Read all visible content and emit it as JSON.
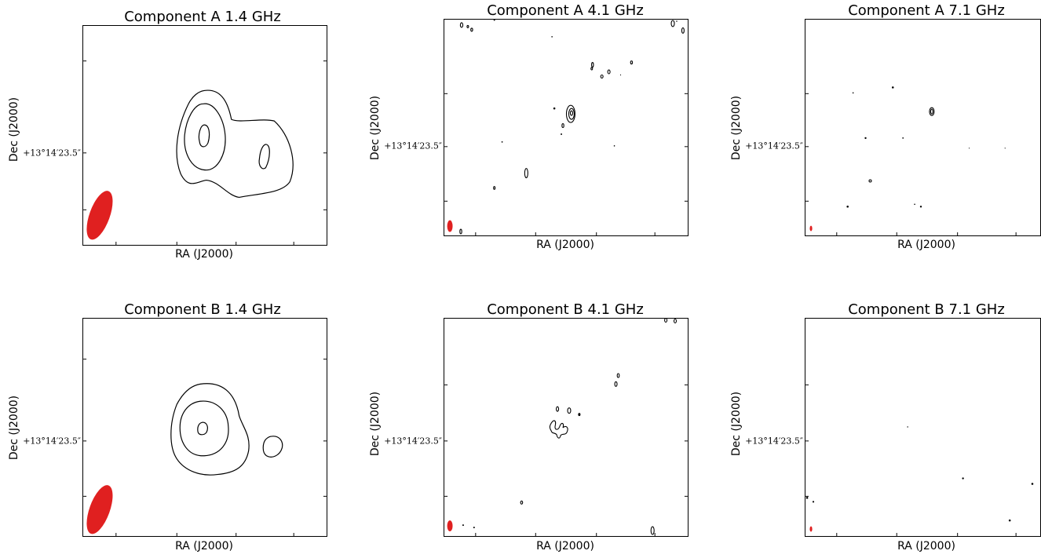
{
  "panels": [
    {
      "title": "Component A 1.4 GHz",
      "xlabel": "RA (J2000)",
      "ylabel": "Dec (J2000)",
      "ytick": "+13°14′23.5″"
    },
    {
      "title": "Component A 4.1 GHz",
      "xlabel": "RA (J2000)",
      "ylabel": "Dec (J2000)",
      "ytick": "+13°14′23.5″"
    },
    {
      "title": "Component A 7.1 GHz",
      "xlabel": "RA (J2000)",
      "ylabel": "Dec (J2000)",
      "ytick": "+13°14′23.5″"
    },
    {
      "title": "Component B 1.4 GHz",
      "xlabel": "RA (J2000)",
      "ylabel": "Dec (J2000)",
      "ytick": "+13°14′23.5″"
    },
    {
      "title": "Component B 4.1 GHz",
      "xlabel": "RA (J2000)",
      "ylabel": "Dec (J2000)",
      "ytick": "+13°14′23.5″"
    },
    {
      "title": "Component B 7.1 GHz",
      "xlabel": "RA (J2000)",
      "ylabel": "Dec (J2000)",
      "ytick": "+13°14′23.5″"
    }
  ],
  "colors": {
    "beam": "#e02020",
    "contour": "#000000"
  }
}
